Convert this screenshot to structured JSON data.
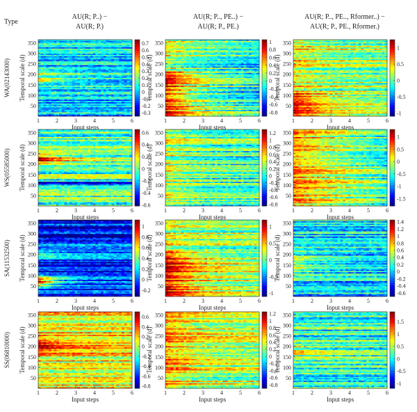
{
  "figure": {
    "type_label": "Type",
    "column_headers": [
      {
        "line1": "AU(R; P..) −",
        "line2": "AU(R; P.)"
      },
      {
        "line1": "AU(R; P.., PE..) −",
        "line2": "AU(R; P., PE.)"
      },
      {
        "line1": "AU(R; P.., PE.., Rformer..) −",
        "line2": "AU(R; P., PE., Rformer.)"
      }
    ]
  },
  "chart_data": [
    {
      "type": "heatmap",
      "row_label": "WA(02143000)",
      "column": 1,
      "xlabel": "Input steps",
      "ylabel": "Temporal scale (d)",
      "x": [
        1,
        2,
        3,
        4,
        5,
        6
      ],
      "xlim": [
        1,
        6
      ],
      "ylim": [
        0,
        365
      ],
      "yticks": [
        50,
        100,
        150,
        200,
        250,
        300,
        350
      ],
      "colorbar": {
        "colormap": "jet",
        "range": [
          -0.35,
          0.75
        ],
        "ticks": [
          0.7,
          0.6,
          0.5,
          0.4,
          0.3,
          0.2,
          0.1,
          0,
          -0.1,
          -0.2,
          -0.3
        ]
      },
      "pattern": "hot strip near 170 d at steps 1-2; mostly near-zero cyan elsewhere"
    },
    {
      "type": "heatmap",
      "row_label": "WA(02143000)",
      "column": 2,
      "xlabel": "Input steps",
      "ylabel": "Temporal scale (d)",
      "x": [
        1,
        2,
        3,
        4,
        5,
        6
      ],
      "xlim": [
        1,
        6
      ],
      "ylim": [
        0,
        365
      ],
      "yticks": [
        50,
        100,
        150,
        200,
        250,
        300,
        350
      ],
      "colorbar": {
        "colormap": "jet",
        "range": [
          -0.9,
          1.05
        ],
        "ticks": [
          1,
          0.8,
          0.6,
          0.4,
          0.2,
          0,
          -0.2,
          -0.4,
          -0.6,
          -0.8
        ]
      },
      "pattern": "strong positive at steps 1-2 for scales below 200 d; decreasing toward step 6"
    },
    {
      "type": "heatmap",
      "row_label": "WA(02143000)",
      "column": 3,
      "xlabel": "Input steps",
      "ylabel": "Temporal scale (d)",
      "x": [
        1,
        2,
        3,
        4,
        5,
        6
      ],
      "xlim": [
        1,
        6
      ],
      "ylim": [
        0,
        365
      ],
      "yticks": [
        50,
        100,
        150,
        200,
        250,
        300,
        350
      ],
      "colorbar": {
        "colormap": "jet",
        "range": [
          -1.1,
          1.25
        ],
        "ticks": [
          1,
          0.5,
          0,
          -0.5,
          -1
        ]
      },
      "pattern": "positive at low scales and step 1; mixed bands"
    },
    {
      "type": "heatmap",
      "row_label": "WS(05585000)",
      "column": 1,
      "xlabel": "Input steps",
      "ylabel": "Temporal scale (d)",
      "x": [
        1,
        2,
        3,
        4,
        5,
        6
      ],
      "xlim": [
        1,
        6
      ],
      "ylim": [
        0,
        365
      ],
      "yticks": [
        50,
        100,
        150,
        200,
        250,
        300,
        350
      ],
      "colorbar": {
        "colormap": "jet",
        "range": [
          -0.62,
          0.65
        ],
        "ticks": [
          0.6,
          0.4,
          0.2,
          0,
          -0.2,
          -0.4,
          -0.6
        ]
      },
      "pattern": "hot block 200-260 d at steps 1-2; negative band near 110 d"
    },
    {
      "type": "heatmap",
      "row_label": "WS(05585000)",
      "column": 2,
      "xlabel": "Input steps",
      "ylabel": "Temporal scale (d)",
      "x": [
        1,
        2,
        3,
        4,
        5,
        6
      ],
      "xlim": [
        1,
        6
      ],
      "ylim": [
        0,
        365
      ],
      "yticks": [
        50,
        100,
        150,
        200,
        250,
        300,
        350
      ],
      "colorbar": {
        "colormap": "jet",
        "range": [
          -0.85,
          1.3
        ],
        "ticks": [
          1.2,
          1,
          0.8,
          0.6,
          0.4,
          0.2,
          0,
          -0.2,
          -0.4,
          -0.6,
          -0.8
        ]
      },
      "pattern": "narrow hot bands at steps 1-2; mostly slightly positive"
    },
    {
      "type": "heatmap",
      "row_label": "WS(05585000)",
      "column": 3,
      "xlabel": "Input steps",
      "ylabel": "Temporal scale (d)",
      "x": [
        1,
        2,
        3,
        4,
        5,
        6
      ],
      "xlim": [
        1,
        6
      ],
      "ylim": [
        0,
        365
      ],
      "yticks": [
        50,
        100,
        150,
        200,
        250,
        300,
        350
      ],
      "colorbar": {
        "colormap": "jet",
        "range": [
          -1.8,
          1.3
        ],
        "ticks": [
          1,
          0.5,
          0,
          -0.5,
          -1,
          -1.5
        ]
      },
      "pattern": "broadly positive (orange) across scales; cooler toward step 6"
    },
    {
      "type": "heatmap",
      "row_label": "SA(11532500)",
      "column": 1,
      "xlabel": "Input steps",
      "ylabel": "Temporal scale (d)",
      "x": [
        1,
        2,
        3,
        4,
        5,
        6
      ],
      "xlim": [
        1,
        6
      ],
      "ylim": [
        0,
        365
      ],
      "yticks": [
        50,
        100,
        150,
        200,
        250,
        300,
        350
      ],
      "colorbar": {
        "colormap": "jet",
        "range": [
          -0.32,
          1.12
        ],
        "ticks": [
          1,
          0.8,
          0.6,
          0.4,
          0.2,
          0,
          -0.2
        ]
      },
      "pattern": "hot spot near 70 d at step 1; upper scales negative blue"
    },
    {
      "type": "heatmap",
      "row_label": "SA(11532500)",
      "column": 2,
      "xlabel": "Input steps",
      "ylabel": "Temporal scale (d)",
      "x": [
        1,
        2,
        3,
        4,
        5,
        6
      ],
      "xlim": [
        1,
        6
      ],
      "ylim": [
        0,
        365
      ],
      "yticks": [
        50,
        100,
        150,
        200,
        250,
        300,
        350
      ],
      "colorbar": {
        "colormap": "jet",
        "range": [
          -1.1,
          1.2
        ],
        "ticks": [
          1,
          0.5,
          0,
          -0.5,
          -1
        ]
      },
      "pattern": "strong positive below 220 d at steps 1-2; fading with steps"
    },
    {
      "type": "heatmap",
      "row_label": "SA(11532500)",
      "column": 3,
      "xlabel": "Input steps",
      "ylabel": "Temporal scale (d)",
      "x": [
        1,
        2,
        3,
        4,
        5,
        6
      ],
      "xlim": [
        1,
        6
      ],
      "ylim": [
        0,
        365
      ],
      "yticks": [
        50,
        100,
        150,
        200,
        250,
        300,
        350
      ],
      "colorbar": {
        "colormap": "jet",
        "range": [
          -0.7,
          1.45
        ],
        "ticks": [
          1.4,
          1.2,
          1,
          0.8,
          0.6,
          0.4,
          0.2,
          0,
          -0.2,
          -0.4,
          -0.6
        ]
      },
      "pattern": "mostly near zero; warm spots at steps 1-2 around 100-220 d"
    },
    {
      "type": "heatmap",
      "row_label": "SS(06810000)",
      "column": 1,
      "xlabel": "Input steps",
      "ylabel": "Temporal scale (d)",
      "x": [
        1,
        2,
        3,
        4,
        5,
        6
      ],
      "xlim": [
        1,
        6
      ],
      "ylim": [
        0,
        365
      ],
      "yticks": [
        50,
        100,
        150,
        200,
        250,
        300,
        350
      ],
      "colorbar": {
        "colormap": "jet",
        "range": [
          -0.85,
          0.7
        ],
        "ticks": [
          0.6,
          0.4,
          0.2,
          0,
          -0.2,
          -0.4,
          -0.6,
          -0.8
        ]
      },
      "pattern": "hot region 170-250 d at steps 1-3; positive elsewhere"
    },
    {
      "type": "heatmap",
      "row_label": "SS(06810000)",
      "column": 2,
      "xlabel": "Input steps",
      "ylabel": "Temporal scale (d)",
      "x": [
        1,
        2,
        3,
        4,
        5,
        6
      ],
      "xlim": [
        1,
        6
      ],
      "ylim": [
        0,
        365
      ],
      "yticks": [
        50,
        100,
        150,
        200,
        250,
        300,
        350
      ],
      "colorbar": {
        "colormap": "jet",
        "range": [
          -0.9,
          1.25
        ],
        "ticks": [
          1.2,
          1,
          0.8,
          0.6,
          0.4,
          0.2,
          0,
          -0.2,
          -0.4,
          -0.6,
          -0.8
        ]
      },
      "pattern": "mixed bands; positive overall, hot streaks at steps 1-2"
    },
    {
      "type": "heatmap",
      "row_label": "SS(06810000)",
      "column": 3,
      "xlabel": "Input steps",
      "ylabel": "Temporal scale (d)",
      "x": [
        1,
        2,
        3,
        4,
        5,
        6
      ],
      "xlim": [
        1,
        6
      ],
      "ylim": [
        0,
        365
      ],
      "yticks": [
        50,
        100,
        150,
        200,
        250,
        300,
        350
      ],
      "colorbar": {
        "colormap": "jet",
        "range": [
          -1.2,
          1.9
        ],
        "ticks": [
          1.5,
          1,
          0.5,
          0,
          -0.5,
          -1
        ]
      },
      "pattern": "mostly near zero cyan; few warm bands at steps 1-2"
    }
  ]
}
